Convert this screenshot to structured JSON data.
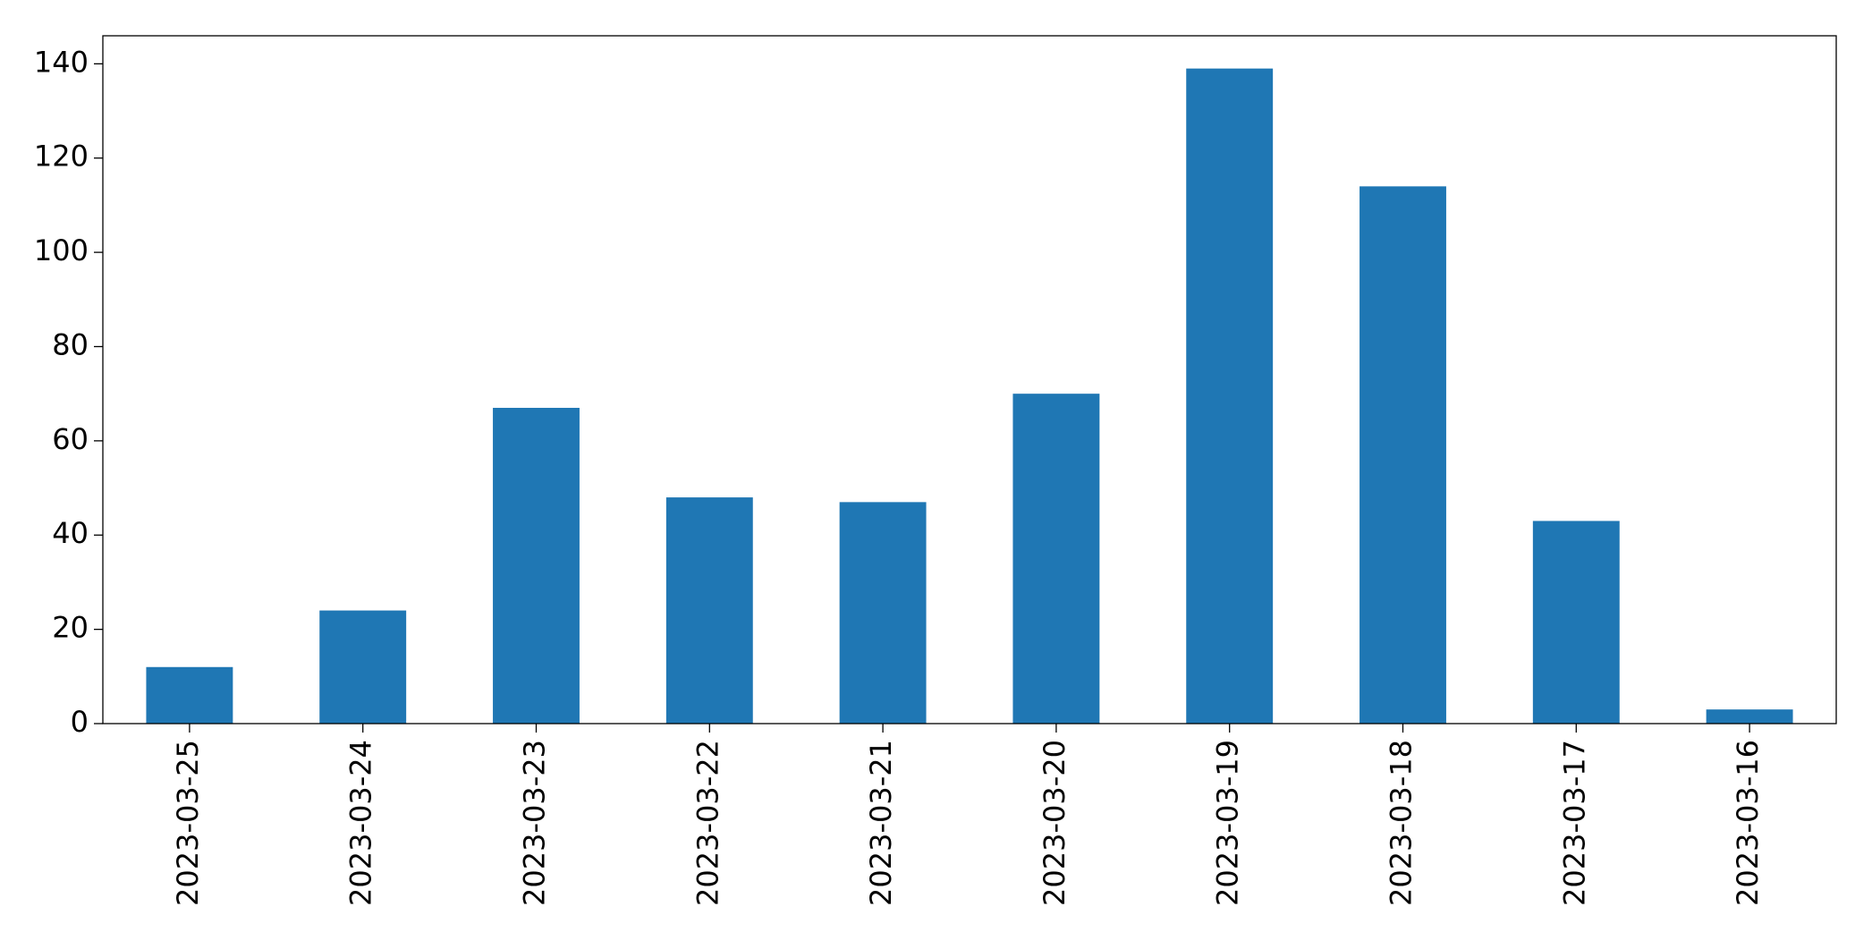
{
  "chart_data": {
    "type": "bar",
    "categories": [
      "2023-03-25",
      "2023-03-24",
      "2023-03-23",
      "2023-03-22",
      "2023-03-21",
      "2023-03-20",
      "2023-03-19",
      "2023-03-18",
      "2023-03-17",
      "2023-03-16"
    ],
    "values": [
      12,
      24,
      67,
      48,
      47,
      70,
      139,
      114,
      43,
      3
    ],
    "color": "#1f77b4",
    "ylim": [
      0,
      145.95
    ],
    "yticks": [
      0,
      20,
      40,
      60,
      80,
      100,
      120,
      140
    ],
    "grid": false
  }
}
